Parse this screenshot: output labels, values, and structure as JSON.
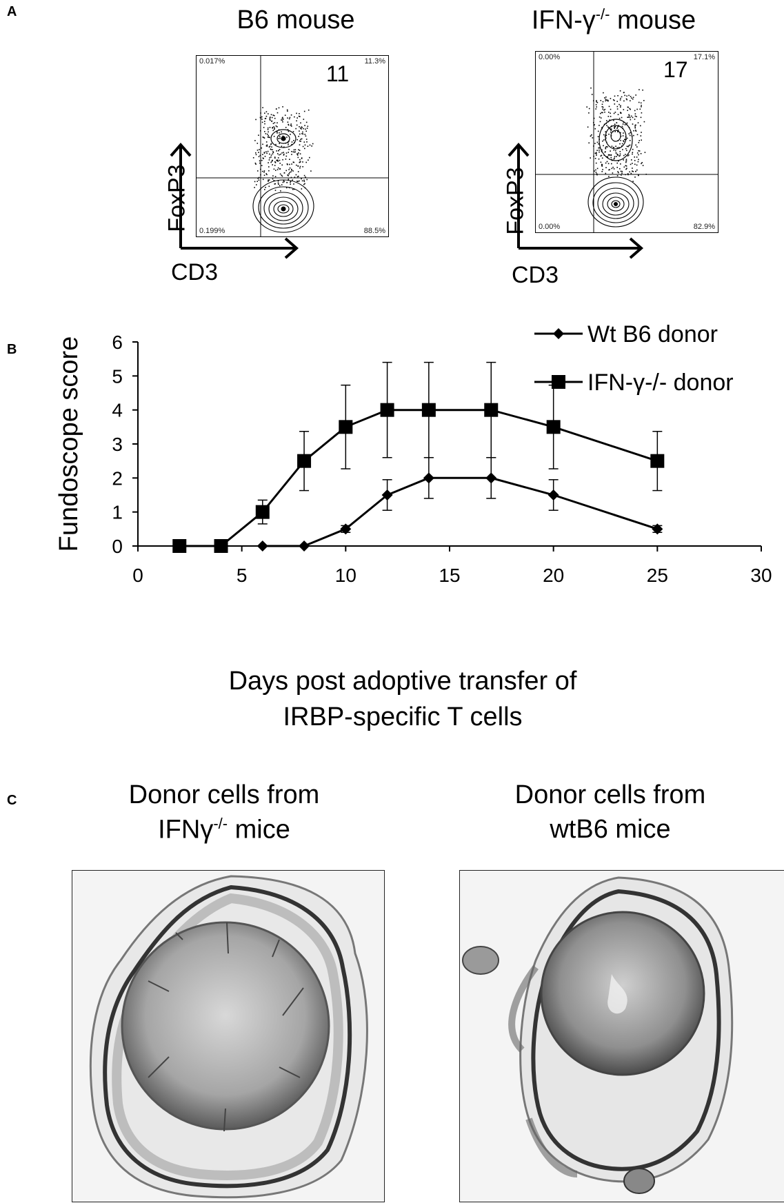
{
  "panel_a": {
    "letter": "A",
    "plots": [
      {
        "title": "B6 mouse",
        "big_number": "11",
        "q_upper_left": "0.017%",
        "q_upper_right": "11.3%",
        "q_lower_left": "0.199%",
        "q_lower_right": "88.5%",
        "x_label": "CD3",
        "y_label": "FoxP3"
      },
      {
        "title_main": "IFN-γ",
        "title_sup": "-/-",
        "title_tail": " mouse",
        "big_number": "17",
        "q_upper_left": "0.00%",
        "q_upper_right": "17.1%",
        "q_lower_left": "0.00%",
        "q_lower_right": "82.9%",
        "x_label": "CD3",
        "y_label": "FoxP3"
      }
    ]
  },
  "panel_b": {
    "letter": "B"
  },
  "chart_data": {
    "type": "line",
    "title": "",
    "xlabel": "Days post adoptive transfer of IRBP-specific T cells",
    "xlabel_lines": [
      "Days post adoptive transfer of",
      "IRBP-specific T cells"
    ],
    "ylabel": "Fundoscope score",
    "xlim": [
      0,
      30
    ],
    "ylim": [
      0,
      6
    ],
    "xticks": [
      0,
      5,
      10,
      15,
      20,
      25,
      30
    ],
    "yticks": [
      0,
      1,
      2,
      3,
      4,
      5,
      6
    ],
    "grid": false,
    "legend_position": "top-right",
    "series": [
      {
        "name": "Wt B6 donor",
        "marker": "diamond",
        "x": [
          6,
          8,
          10,
          12,
          14,
          17,
          20,
          25
        ],
        "values": [
          0,
          0,
          0.5,
          1.5,
          2,
          2,
          1.5,
          0.5
        ],
        "error": [
          0,
          0,
          0.1,
          0.45,
          0.6,
          0.6,
          0.45,
          0.1
        ]
      },
      {
        "name": "IFN-γ-/- donor",
        "marker": "square",
        "x": [
          2,
          4,
          6,
          8,
          10,
          12,
          14,
          17,
          20,
          25
        ],
        "values": [
          0,
          0,
          1,
          2.5,
          3.5,
          4,
          4,
          4,
          3.5,
          2.5
        ],
        "error": [
          0,
          0,
          0.35,
          0.87,
          1.23,
          1.4,
          1.4,
          1.4,
          1.23,
          0.87
        ]
      }
    ]
  },
  "panel_c": {
    "letter": "C",
    "left": {
      "line1": "Donor cells from",
      "line2_main": "IFNγ",
      "line2_sup": "-/-",
      "line2_tail": " mice"
    },
    "right": {
      "line1": "Donor cells from",
      "line2": "wtB6  mice"
    }
  },
  "colors": {
    "ink": "#000000",
    "histo_bg": "#f2f2f2",
    "lens": "#8a8a8a"
  }
}
